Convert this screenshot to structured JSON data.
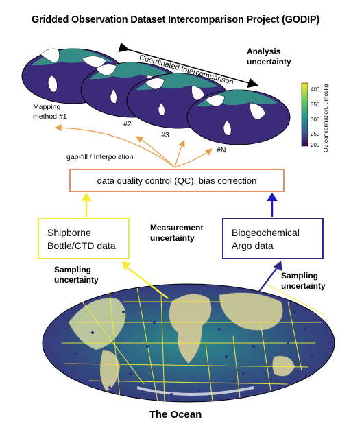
{
  "title": "Gridded Observation Dataset Intercomparison Project (GODIP)",
  "globes": {
    "labels": [
      "Mapping method #1",
      "#2",
      "#3",
      "#N"
    ],
    "label_1_line1": "Mapping",
    "label_1_line2": "method #1"
  },
  "coordinated": "Coordinated Intercomparison",
  "analysis_uncertainty_line1": "Analysis",
  "analysis_uncertainty_line2": "uncertainty",
  "colorbar": {
    "label": "O2 concentration, μmol/kg",
    "ticks": [
      "400",
      "350",
      "300",
      "250",
      "200"
    ],
    "colors": [
      "#fde725",
      "#5ec962",
      "#21918c",
      "#3b528b",
      "#440154"
    ]
  },
  "gapfill": "gap-fill / Interpolation",
  "qc_box": "data quality control (QC), bias correction",
  "ship_box_line1": "Shipborne",
  "ship_box_line2": "Bottle/CTD data",
  "argo_box_line1": "Biogeochemical",
  "argo_box_line2": "Argo data",
  "measurement_line1": "Measurement",
  "measurement_line2": "uncertainty",
  "sampling_left_line1": "Sampling",
  "sampling_left_line2": "uncertainty",
  "sampling_right_line1": "Sampling",
  "sampling_right_line2": "uncertainty",
  "ocean": "The Ocean",
  "colors": {
    "ship": "#f4ec39",
    "argo": "#2e2d86",
    "qc": "#e6906a",
    "gapfill_arrow": "#e8a050"
  }
}
